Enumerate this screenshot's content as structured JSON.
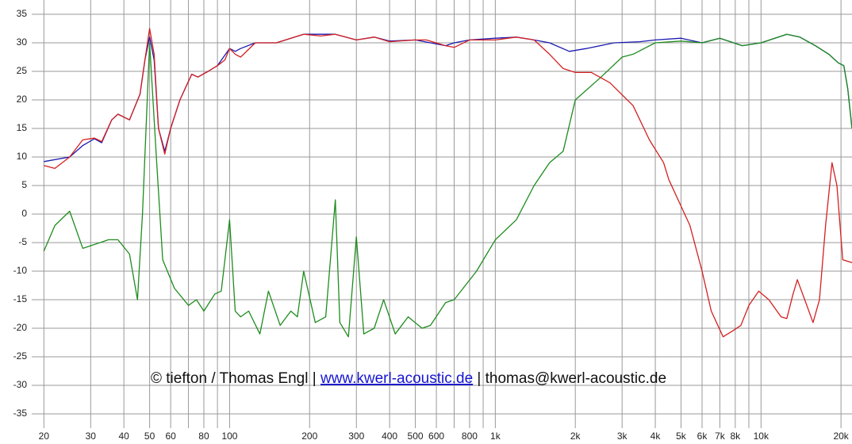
{
  "chart_data": {
    "type": "line",
    "xscale": "log",
    "grid": true,
    "grid_color": "#9a9a9a",
    "xlim": [
      18,
      22000
    ],
    "ylim": [
      -37.5,
      37.5
    ],
    "xticks": [
      20,
      30,
      40,
      50,
      60,
      80,
      100,
      200,
      300,
      400,
      500,
      600,
      800,
      {
        "value": 1000,
        "label": "1k"
      },
      {
        "value": 2000,
        "label": "2k"
      },
      {
        "value": 3000,
        "label": "3k"
      },
      {
        "value": 4000,
        "label": "4k"
      },
      {
        "value": 5000,
        "label": "5k"
      },
      {
        "value": 6000,
        "label": "6k"
      },
      {
        "value": 7000,
        "label": "7k"
      },
      {
        "value": 8000,
        "label": "8k"
      },
      {
        "value": 10000,
        "label": "10k"
      },
      {
        "value": 20000,
        "label": "20k"
      }
    ],
    "x_minor_ticks": [
      70,
      90,
      700,
      900,
      9000
    ],
    "yticks": [
      35,
      30,
      25,
      20,
      15,
      10,
      5,
      0,
      -5,
      -10,
      -15,
      -20,
      -25,
      -30,
      -35
    ],
    "annotation": {
      "prefix": "©  tiefton / Thomas Engl |",
      "link": "www.kwerl-acoustic.de",
      "suffix": "| thomas@kwerl-acoustic.de"
    },
    "series": [
      {
        "color": "#1a1ab0",
        "x": [
          20,
          25,
          28,
          31,
          33,
          36,
          38,
          42,
          46,
          48,
          50,
          52,
          54,
          57,
          60,
          65,
          72,
          76,
          83,
          90,
          100,
          105,
          110,
          125,
          150,
          190,
          250,
          300,
          350,
          400,
          500,
          650,
          700,
          800,
          1000,
          1200,
          1400,
          1600,
          1900,
          2200,
          2800,
          3500,
          4000,
          5000,
          6000,
          7000,
          8500,
          10000,
          12500,
          14000,
          16000,
          18000,
          19500,
          20500,
          21200,
          22000
        ],
        "values": [
          9.2,
          10,
          12,
          13.2,
          12.5,
          16.5,
          17.5,
          16.5,
          21,
          27,
          31,
          27,
          15,
          11,
          15,
          20,
          24.5,
          24,
          25,
          26,
          29,
          28.5,
          29,
          30,
          30,
          31.5,
          31.5,
          30.5,
          31,
          30.3,
          30.5,
          29.5,
          30,
          30.5,
          30.8,
          31,
          30.5,
          30,
          28.5,
          29,
          30,
          30.2,
          30.5,
          30.8,
          30,
          30.8,
          29.5,
          30,
          31.5,
          31,
          29.5,
          28,
          26.5,
          26,
          22,
          15
        ]
      },
      {
        "color": "#1e8c1e",
        "x": [
          20,
          22,
          25,
          28,
          35,
          38,
          42,
          45,
          47,
          50,
          53,
          56,
          62,
          70,
          75,
          80,
          88,
          93,
          100,
          105,
          110,
          118,
          130,
          140,
          155,
          170,
          180,
          190,
          210,
          230,
          250,
          260,
          280,
          300,
          320,
          350,
          380,
          420,
          470,
          530,
          570,
          650,
          700,
          850,
          1000,
          1200,
          1400,
          1600,
          1800,
          2000,
          2500,
          3000,
          3300,
          4000,
          5000,
          6000,
          7000,
          8500,
          10000,
          12500,
          14000,
          16000,
          18000,
          19500,
          20500,
          21200,
          22000
        ],
        "values": [
          -6.5,
          -2,
          0.5,
          -6,
          -4.5,
          -4.5,
          -7,
          -15,
          0,
          30,
          10,
          -8,
          -13,
          -16,
          -15,
          -17,
          -14,
          -13.5,
          -1,
          -17,
          -18,
          -17,
          -21,
          -13.5,
          -19.5,
          -17,
          -18,
          -10,
          -19,
          -18,
          2.5,
          -19,
          -21.5,
          -4,
          -21,
          -20,
          -15,
          -21,
          -18,
          -20,
          -19.5,
          -15.5,
          -15,
          -10,
          -4.5,
          -1,
          5,
          9,
          11,
          20,
          24,
          27.5,
          28,
          30,
          30.3,
          30,
          30.8,
          29.5,
          30,
          31.5,
          31,
          29.5,
          28,
          26.5,
          26,
          22,
          15
        ]
      },
      {
        "color": "#d42020",
        "x": [
          20,
          22,
          25,
          28,
          31,
          33,
          36,
          38,
          42,
          46,
          48,
          50,
          52,
          54,
          57,
          60,
          65,
          72,
          76,
          83,
          90,
          96,
          100,
          105,
          110,
          125,
          150,
          190,
          220,
          250,
          300,
          350,
          400,
          500,
          550,
          650,
          700,
          800,
          1000,
          1200,
          1400,
          1600,
          1800,
          2000,
          2300,
          2700,
          3300,
          3800,
          4300,
          4500,
          5400,
          6000,
          6500,
          7200,
          7800,
          8400,
          9000,
          9800,
          10700,
          11900,
          12500,
          13200,
          13700,
          14600,
          15700,
          16600,
          17500,
          18500,
          19300,
          20300,
          22000
        ],
        "values": [
          8.5,
          8,
          10,
          13,
          13.3,
          12.7,
          16.5,
          17.5,
          16.5,
          21,
          27,
          32.5,
          28,
          15,
          10.5,
          15,
          20,
          24.5,
          24,
          25,
          26,
          27,
          29,
          28,
          27.5,
          30,
          30,
          31.5,
          31.2,
          31.5,
          30.5,
          31,
          30.2,
          30.5,
          30.5,
          29.5,
          29.2,
          30.5,
          30.5,
          31,
          30.5,
          28,
          25.5,
          24.8,
          24.8,
          23,
          19,
          13,
          9,
          6,
          -2,
          -10,
          -17,
          -21.5,
          -20.5,
          -19.5,
          -16,
          -13.5,
          -15,
          -18,
          -18.3,
          -14,
          -11.5,
          -15,
          -19,
          -15,
          -2,
          9,
          5,
          -8,
          -8.5
        ]
      }
    ]
  }
}
